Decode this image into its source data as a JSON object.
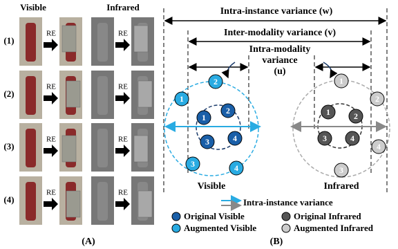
{
  "panel_a": {
    "headers": [
      "Visible",
      "Infrared"
    ],
    "row_labels": [
      "(1)",
      "(2)",
      "(3)",
      "(4)"
    ],
    "re_label": "RE",
    "caption": "(A)"
  },
  "panel_b": {
    "w_label": "Intra-instance variance (w)",
    "v_label": "Inter-modality variance (v)",
    "u_label": [
      "Intra-modality",
      "variance",
      "(u)"
    ],
    "visible_label": "Visible",
    "infrared_label": "Infrared",
    "visible_original": [
      "1",
      "2",
      "3",
      "4"
    ],
    "visible_augmented": [
      "2",
      "1",
      "3",
      "4"
    ],
    "infrared_original": [
      "1",
      "2",
      "3",
      "4"
    ],
    "infrared_augmented": [
      "1",
      "2",
      "4",
      "3"
    ],
    "legend": {
      "arrow": "Intra-instance variance",
      "original_visible": "Original Visible",
      "augmented_visible": "Augmented Visible",
      "original_infrared": "Original Infrared",
      "augmented_infrared": "Augmented Infrared"
    },
    "caption": "(B)"
  }
}
